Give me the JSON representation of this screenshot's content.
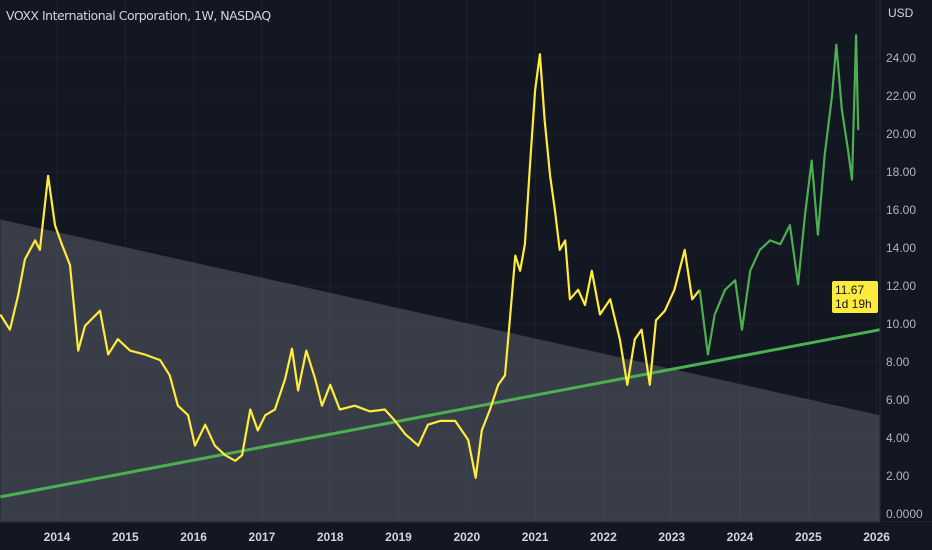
{
  "header": {
    "title": "VOXX International Corporation, 1W, NASDAQ"
  },
  "price_axis": {
    "unit": "USD"
  },
  "last_price": {
    "value": "11.67",
    "countdown": "1d 19h",
    "color": "#ffeb3b"
  },
  "chart_data": {
    "type": "line",
    "title": "VOXX International Corporation, 1W, NASDAQ",
    "xlabel": "",
    "ylabel": "USD",
    "xlim": [
      2013.17,
      2026.05
    ],
    "ylim": [
      0,
      27
    ],
    "grid": true,
    "y_ticks": [
      "0.0000",
      "2.00",
      "4.00",
      "6.00",
      "8.00",
      "10.00",
      "12.00",
      "14.00",
      "16.00",
      "18.00",
      "20.00",
      "22.00",
      "24.00"
    ],
    "y_tick_values": [
      0,
      2,
      4,
      6,
      8,
      10,
      12,
      14,
      16,
      18,
      20,
      22,
      24
    ],
    "x_ticks": [
      "2014",
      "2015",
      "2016",
      "2017",
      "2018",
      "2019",
      "2020",
      "2021",
      "2022",
      "2023",
      "2024",
      "2025",
      "2026"
    ],
    "x_tick_values": [
      2014,
      2015,
      2016,
      2017,
      2018,
      2019,
      2020,
      2021,
      2022,
      2023,
      2024,
      2025,
      2026
    ],
    "series": [
      {
        "color": "#ffeb3b",
        "points": [
          [
            2013.17,
            10.5
          ],
          [
            2013.31,
            9.7
          ],
          [
            2013.43,
            11.5
          ],
          [
            2013.53,
            13.4
          ],
          [
            2013.68,
            14.4
          ],
          [
            2013.75,
            13.9
          ],
          [
            2013.87,
            17.8
          ],
          [
            2013.97,
            15.2
          ],
          [
            2014.07,
            14.2
          ],
          [
            2014.19,
            13.1
          ],
          [
            2014.31,
            8.6
          ],
          [
            2014.41,
            9.9
          ],
          [
            2014.63,
            10.7
          ],
          [
            2014.75,
            8.4
          ],
          [
            2014.89,
            9.2
          ],
          [
            2015.07,
            8.6
          ],
          [
            2015.28,
            8.4
          ],
          [
            2015.51,
            8.1
          ],
          [
            2015.65,
            7.3
          ],
          [
            2015.77,
            5.7
          ],
          [
            2015.92,
            5.2
          ],
          [
            2016.02,
            3.6
          ],
          [
            2016.17,
            4.7
          ],
          [
            2016.31,
            3.6
          ],
          [
            2016.46,
            3.1
          ],
          [
            2016.61,
            2.8
          ],
          [
            2016.71,
            3.1
          ],
          [
            2016.83,
            5.5
          ],
          [
            2016.94,
            4.4
          ],
          [
            2017.05,
            5.2
          ],
          [
            2017.19,
            5.5
          ],
          [
            2017.34,
            7.1
          ],
          [
            2017.44,
            8.7
          ],
          [
            2017.53,
            6.5
          ],
          [
            2017.65,
            8.6
          ],
          [
            2017.78,
            7.1
          ],
          [
            2017.88,
            5.7
          ],
          [
            2018.0,
            6.8
          ],
          [
            2018.14,
            5.5
          ],
          [
            2018.36,
            5.7
          ],
          [
            2018.58,
            5.4
          ],
          [
            2018.8,
            5.5
          ],
          [
            2018.95,
            4.9
          ],
          [
            2019.1,
            4.2
          ],
          [
            2019.29,
            3.6
          ],
          [
            2019.43,
            4.7
          ],
          [
            2019.61,
            4.9
          ],
          [
            2019.83,
            4.9
          ],
          [
            2020.02,
            3.9
          ],
          [
            2020.13,
            1.9
          ],
          [
            2020.22,
            4.4
          ],
          [
            2020.34,
            5.5
          ],
          [
            2020.46,
            6.8
          ],
          [
            2020.56,
            7.3
          ],
          [
            2020.63,
            10.2
          ],
          [
            2020.71,
            13.6
          ],
          [
            2020.78,
            12.8
          ],
          [
            2020.85,
            14.2
          ],
          [
            2020.93,
            18.6
          ],
          [
            2021.0,
            22.3
          ],
          [
            2021.07,
            24.2
          ],
          [
            2021.14,
            20.7
          ],
          [
            2021.22,
            17.8
          ],
          [
            2021.29,
            16.0
          ],
          [
            2021.36,
            13.9
          ],
          [
            2021.44,
            14.4
          ],
          [
            2021.51,
            11.3
          ],
          [
            2021.63,
            11.8
          ],
          [
            2021.73,
            11.0
          ],
          [
            2021.83,
            12.8
          ],
          [
            2021.95,
            10.5
          ],
          [
            2022.1,
            11.3
          ],
          [
            2022.24,
            9.2
          ],
          [
            2022.35,
            6.8
          ],
          [
            2022.46,
            9.2
          ],
          [
            2022.56,
            9.7
          ],
          [
            2022.68,
            6.8
          ],
          [
            2022.77,
            10.2
          ],
          [
            2022.9,
            10.7
          ],
          [
            2023.04,
            11.8
          ],
          [
            2023.19,
            13.9
          ],
          [
            2023.3,
            11.3
          ],
          [
            2023.41,
            11.8
          ]
        ]
      },
      {
        "color": "#4caf50",
        "points": [
          [
            2023.41,
            11.8
          ],
          [
            2023.53,
            8.4
          ],
          [
            2023.63,
            10.5
          ],
          [
            2023.78,
            11.8
          ],
          [
            2023.93,
            12.3
          ],
          [
            2024.03,
            9.7
          ],
          [
            2024.15,
            12.8
          ],
          [
            2024.29,
            13.9
          ],
          [
            2024.44,
            14.4
          ],
          [
            2024.59,
            14.2
          ],
          [
            2024.73,
            15.2
          ],
          [
            2024.85,
            12.1
          ],
          [
            2024.95,
            15.7
          ],
          [
            2025.05,
            18.6
          ],
          [
            2025.14,
            14.7
          ],
          [
            2025.24,
            18.9
          ],
          [
            2025.35,
            22.1
          ],
          [
            2025.41,
            24.7
          ],
          [
            2025.49,
            21.3
          ],
          [
            2025.58,
            19.2
          ],
          [
            2025.64,
            17.6
          ],
          [
            2025.7,
            25.2
          ],
          [
            2025.73,
            20.2
          ]
        ]
      }
    ],
    "annotations": [
      {
        "type": "trendline",
        "color": "#4caf50",
        "from": [
          2013.17,
          0.9
        ],
        "to": [
          2026.05,
          9.7
        ]
      },
      {
        "type": "shaded_region_below_line",
        "from": [
          2013.17,
          15.5
        ],
        "to": [
          2026.05,
          5.2
        ]
      }
    ]
  }
}
